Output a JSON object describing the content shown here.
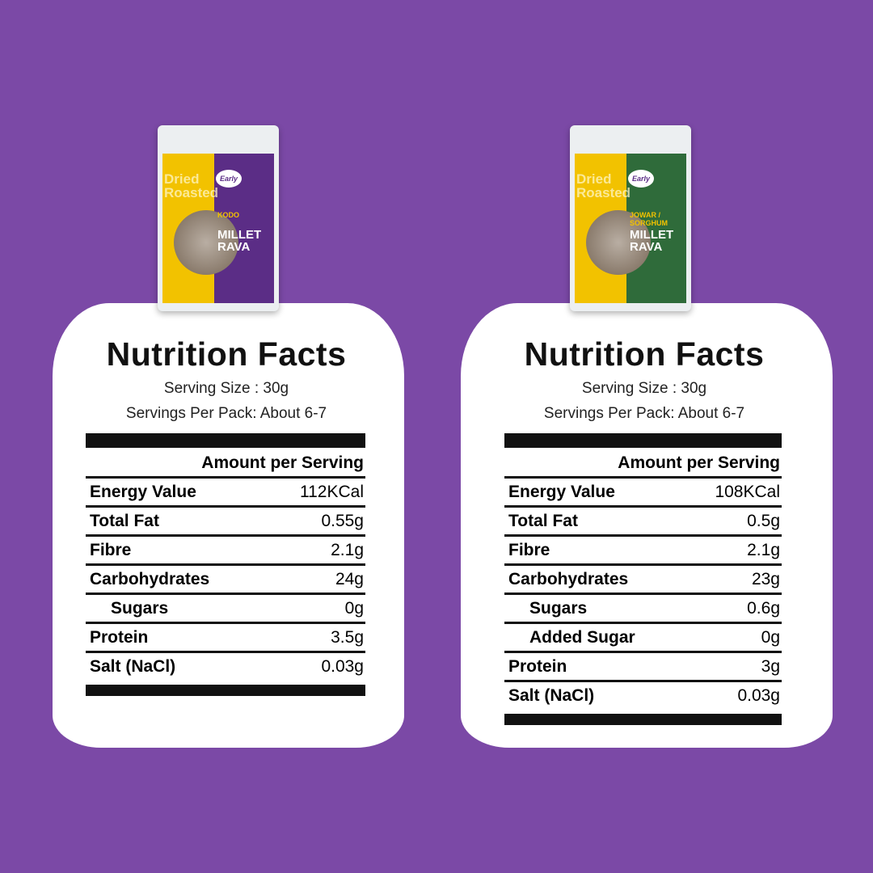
{
  "panels": [
    {
      "pack": {
        "brand": "Early",
        "side_text": "Dried Roasted",
        "variant": "KODO",
        "name": "MILLET RAVA",
        "color": "#5b2d86"
      },
      "title": "Nutrition Facts",
      "serving_size": "Serving Size : 30g",
      "servings_per_pack": "Servings Per Pack: About 6-7",
      "header": "Amount per Serving",
      "rows": [
        {
          "label": "Energy Value",
          "value": "112KCal"
        },
        {
          "label": "Total Fat",
          "value": "0.55g"
        },
        {
          "label": "Fibre",
          "value": "2.1g"
        },
        {
          "label": "Carbohydrates",
          "value": "24g"
        },
        {
          "label": "Sugars",
          "value": "0g",
          "sub": true
        },
        {
          "label": "Protein",
          "value": "3.5g"
        },
        {
          "label": "Salt (NaCl)",
          "value": "0.03g"
        }
      ]
    },
    {
      "pack": {
        "brand": "Early",
        "side_text": "Dried Roasted",
        "variant": "JOWAR / SORGHUM",
        "name": "MILLET RAVA",
        "color": "#2f6b3a"
      },
      "title": "Nutrition Facts",
      "serving_size": "Serving Size : 30g",
      "servings_per_pack": "Servings Per Pack: About 6-7",
      "header": "Amount per Serving",
      "rows": [
        {
          "label": "Energy Value",
          "value": "108KCal"
        },
        {
          "label": "Total Fat",
          "value": "0.5g"
        },
        {
          "label": "Fibre",
          "value": "2.1g"
        },
        {
          "label": "Carbohydrates",
          "value": "23g"
        },
        {
          "label": "Sugars",
          "value": "0.6g",
          "sub": true
        },
        {
          "label": "Added Sugar",
          "value": "0g",
          "sub": true
        },
        {
          "label": "Protein",
          "value": "3g"
        },
        {
          "label": "Salt (NaCl)",
          "value": "0.03g"
        }
      ]
    }
  ]
}
